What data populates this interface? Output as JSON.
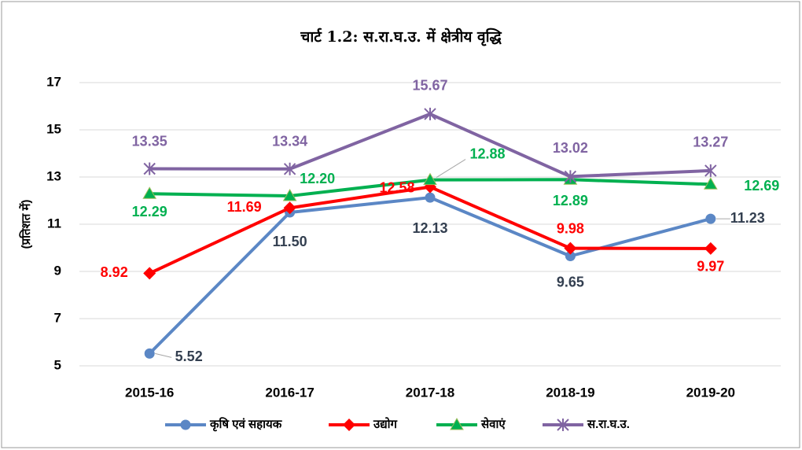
{
  "chart_data": {
    "type": "line",
    "title": "चार्ट 1.2: स.रा.घ.उ. में क्षेत्रीय वृद्धि",
    "y_label": "(प्रतिशत में)",
    "categories": [
      "2015-16",
      "2016-17",
      "2017-18",
      "2018-19",
      "2019-20"
    ],
    "ylim": [
      5,
      17
    ],
    "yticks": [
      5,
      7,
      9,
      11,
      13,
      15,
      17
    ],
    "grid": true,
    "legend": "bottom",
    "series": [
      {
        "name": "कृषि एवं सहायक",
        "color": "#5b87c5",
        "label_color": "#333f50",
        "values": [
          5.52,
          11.5,
          12.13,
          9.65,
          11.23
        ],
        "value_labels": [
          "5.52",
          "11.50",
          "12.13",
          "9.65",
          "11.23"
        ]
      },
      {
        "name": "उद्योग",
        "color": "#ff0000",
        "label_color": "#ff0000",
        "values": [
          8.92,
          11.69,
          12.58,
          9.98,
          9.97
        ],
        "value_labels": [
          "8.92",
          "11.69",
          "12.58",
          "9.98",
          "9.97"
        ]
      },
      {
        "name": "सेवाएं",
        "color": "#00b050",
        "label_color": "#00b050",
        "values": [
          12.29,
          12.2,
          12.88,
          12.89,
          12.69
        ],
        "value_labels": [
          "12.29",
          "12.20",
          "12.88",
          "12.89",
          "12.69"
        ]
      },
      {
        "name": "स.रा.घ.उ.",
        "color": "#8064a2",
        "label_color": "#8064a2",
        "values": [
          13.35,
          13.34,
          15.67,
          13.02,
          13.27
        ],
        "value_labels": [
          "13.35",
          "13.34",
          "15.67",
          "13.02",
          "13.27"
        ]
      }
    ]
  }
}
